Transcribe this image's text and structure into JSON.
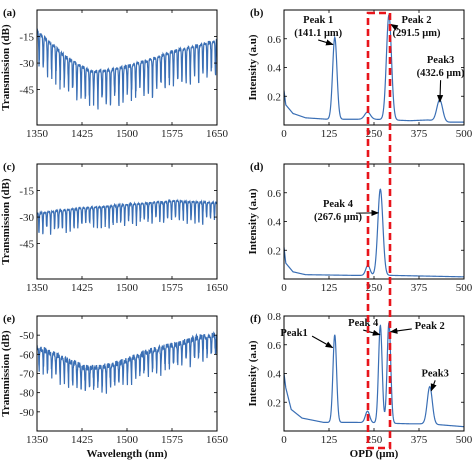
{
  "chart_data": [
    {
      "id": "a",
      "panel_label": "(a)",
      "type": "line",
      "color": "#3a6fb5",
      "xlim": [
        1350,
        1650
      ],
      "ylim": [
        -65,
        0
      ],
      "xticks": [
        1350,
        1425,
        1500,
        1575,
        1650
      ],
      "yticks": [
        -15,
        -30,
        -45
      ],
      "ylabel": "Transmission (dB)",
      "xlabel": "",
      "shape": {
        "kind": "spectrum",
        "top_pts": [
          [
            1350,
            -12
          ],
          [
            1400,
            -27
          ],
          [
            1440,
            -35
          ],
          [
            1475,
            -34
          ],
          [
            1500,
            -32
          ],
          [
            1540,
            -28
          ],
          [
            1580,
            -23
          ],
          [
            1620,
            -20
          ],
          [
            1650,
            -17
          ]
        ],
        "depth": 22,
        "period": 7,
        "jagged": 2
      },
      "annotations": []
    },
    {
      "id": "b",
      "panel_label": "(b)",
      "type": "line",
      "color": "#3a6fb5",
      "xlim": [
        0,
        500
      ],
      "ylim": [
        0,
        0.8
      ],
      "xticks": [
        0,
        125,
        250,
        375,
        500
      ],
      "yticks": [
        0.2,
        0.4,
        0.6
      ],
      "ylabel": "Intensity (a.u)",
      "xlabel": "",
      "shape": {
        "kind": "opd",
        "base": [
          [
            0,
            0.24
          ],
          [
            5,
            0.14
          ],
          [
            25,
            0.08
          ],
          [
            60,
            0.05
          ],
          [
            120,
            0.04
          ],
          [
            250,
            0.04
          ],
          [
            350,
            0.03
          ],
          [
            400,
            0.035
          ],
          [
            450,
            0.02
          ],
          [
            500,
            0.02
          ]
        ],
        "peaks": [
          [
            141.1,
            0.57,
            6
          ],
          [
            291.5,
            0.73,
            7
          ],
          [
            432.6,
            0.15,
            8
          ],
          [
            232,
            0.05,
            8
          ]
        ]
      },
      "annotations": [
        {
          "lines": [
            "Peak 1",
            "(141.1 μm)"
          ],
          "text_at": [
            95,
            0.71
          ],
          "arrow_to": [
            136,
            0.56
          ]
        },
        {
          "lines": [
            "Peak 2",
            "(291.5 μm)"
          ],
          "text_at": [
            368,
            0.71
          ],
          "arrow_to": [
            297,
            0.7
          ]
        },
        {
          "lines": [
            "Peak3",
            "(432.6 μm)"
          ],
          "text_at": [
            435,
            0.43
          ],
          "arrow_to": [
            433,
            0.16
          ]
        }
      ]
    },
    {
      "id": "c",
      "panel_label": "(c)",
      "type": "line",
      "color": "#3a6fb5",
      "xlim": [
        1350,
        1650
      ],
      "ylim": [
        -65,
        0
      ],
      "xticks": [
        1350,
        1425,
        1500,
        1575,
        1650
      ],
      "yticks": [
        -15,
        -30,
        -45
      ],
      "ylabel": "Transmission (dB)",
      "xlabel": "",
      "shape": {
        "kind": "spectrum",
        "top_pts": [
          [
            1350,
            -28
          ],
          [
            1425,
            -25
          ],
          [
            1500,
            -23
          ],
          [
            1575,
            -21
          ],
          [
            1650,
            -22
          ]
        ],
        "depth": 13,
        "period": 6.5,
        "jagged": 1
      },
      "annotations": []
    },
    {
      "id": "d",
      "panel_label": "(d)",
      "type": "line",
      "color": "#3a6fb5",
      "xlim": [
        0,
        500
      ],
      "ylim": [
        0,
        0.8
      ],
      "xticks": [
        0,
        125,
        250,
        375,
        500
      ],
      "yticks": [
        0.2,
        0.4,
        0.6
      ],
      "ylabel": "Intensity (a.u)",
      "xlabel": "",
      "shape": {
        "kind": "opd",
        "base": [
          [
            0,
            0.22
          ],
          [
            5,
            0.11
          ],
          [
            25,
            0.05
          ],
          [
            60,
            0.03
          ],
          [
            200,
            0.025
          ],
          [
            300,
            0.025
          ],
          [
            400,
            0.02
          ],
          [
            500,
            0.015
          ]
        ],
        "peaks": [
          [
            267.6,
            0.6,
            7
          ],
          [
            233,
            0.07,
            6
          ]
        ]
      },
      "annotations": [
        {
          "lines": [
            "Peak 4",
            "(267.6 μm)"
          ],
          "text_at": [
            150,
            0.5
          ],
          "arrow_to": [
            262,
            0.46
          ]
        }
      ]
    },
    {
      "id": "e",
      "panel_label": "(e)",
      "type": "line",
      "color": "#3a6fb5",
      "xlim": [
        1350,
        1650
      ],
      "ylim": [
        -100,
        -40
      ],
      "xticks": [
        1350,
        1425,
        1500,
        1575,
        1650
      ],
      "yticks": [
        -50,
        -60,
        -70,
        -80,
        -90
      ],
      "ylabel": "Transmission (dB)",
      "xlabel": "Wavelength (nm)",
      "shape": {
        "kind": "spectrum",
        "top_pts": [
          [
            1350,
            -56
          ],
          [
            1400,
            -63
          ],
          [
            1430,
            -67
          ],
          [
            1470,
            -66
          ],
          [
            1500,
            -63
          ],
          [
            1540,
            -58
          ],
          [
            1580,
            -55
          ],
          [
            1620,
            -51
          ],
          [
            1650,
            -50
          ]
        ],
        "depth": 14,
        "period": 7,
        "jagged": 3
      },
      "annotations": []
    },
    {
      "id": "f",
      "panel_label": "(f)",
      "type": "line",
      "color": "#3a6fb5",
      "xlim": [
        0,
        500
      ],
      "ylim": [
        0,
        0.8
      ],
      "xticks": [
        0,
        125,
        250,
        375,
        500
      ],
      "yticks": [
        0.2,
        0.4,
        0.6,
        0.8
      ],
      "ylabel": "Intensity (a.u)",
      "xlabel": "OPD (μm)",
      "shape": {
        "kind": "opd",
        "base": [
          [
            0,
            0.4
          ],
          [
            5,
            0.3
          ],
          [
            20,
            0.15
          ],
          [
            50,
            0.09
          ],
          [
            110,
            0.06
          ],
          [
            200,
            0.06
          ],
          [
            350,
            0.05
          ],
          [
            400,
            0.05
          ],
          [
            450,
            0.04
          ],
          [
            500,
            0.03
          ]
        ],
        "peaks": [
          [
            141,
            0.61,
            5
          ],
          [
            267.6,
            0.68,
            5
          ],
          [
            291.5,
            0.7,
            5
          ],
          [
            405,
            0.26,
            7
          ],
          [
            232,
            0.08,
            6
          ]
        ]
      },
      "annotations": [
        {
          "lines": [
            "Peak1"
          ],
          "text_at": [
            28,
            0.66
          ],
          "arrow_to": [
            135,
            0.58
          ]
        },
        {
          "lines": [
            "Peak 4"
          ],
          "text_at": [
            220,
            0.73
          ],
          "arrow_to": [
            266,
            0.67
          ]
        },
        {
          "lines": [
            "Peak 2"
          ],
          "text_at": [
            405,
            0.71
          ],
          "arrow_to": [
            296,
            0.69
          ]
        },
        {
          "lines": [
            "Peak3"
          ],
          "text_at": [
            420,
            0.38
          ],
          "arrow_to": [
            409,
            0.28
          ]
        }
      ]
    }
  ]
}
